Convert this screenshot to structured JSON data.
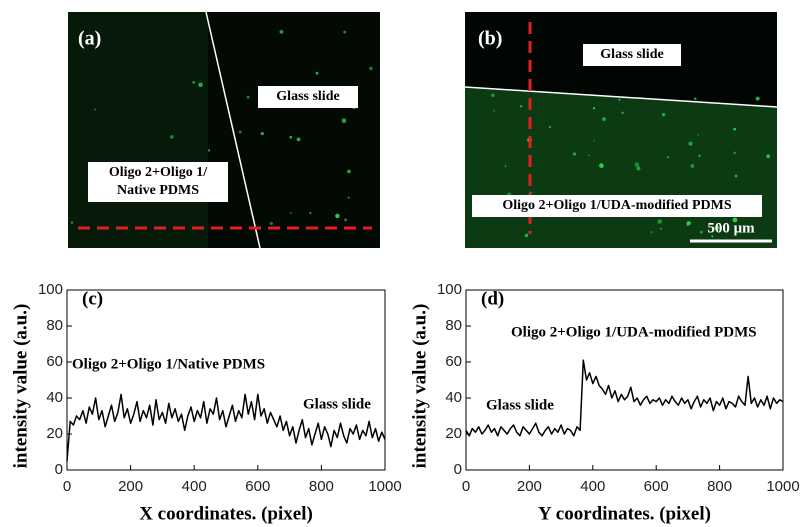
{
  "images": [
    {
      "label": "(a)",
      "annotations": [
        [
          "Glass slide"
        ],
        [
          "Oligo 2+Oligo 1/",
          "Native PDMS"
        ]
      ]
    },
    {
      "label": "(b)",
      "annotations": [
        [
          "Glass slide"
        ],
        [
          "Oligo 2+Oligo 1/UDA-modified  PDMS"
        ]
      ],
      "scale_bar": "500 μm"
    }
  ],
  "chart_data": [
    {
      "type": "line",
      "label": "(c)",
      "xlabel": "X coordinates. (pixel)",
      "ylabel": "intensity value (a.u.)",
      "annotations": [
        "Oligo 2+Oligo 1/Native PDMS",
        "Glass slide"
      ],
      "xlim": [
        0,
        1000
      ],
      "ylim": [
        0,
        100
      ],
      "xticks": [
        0,
        200,
        400,
        600,
        800,
        1000
      ],
      "yticks": [
        0,
        20,
        40,
        60,
        80,
        100
      ],
      "color": "#000000",
      "x": [
        0,
        10,
        20,
        30,
        40,
        50,
        60,
        70,
        80,
        90,
        100,
        110,
        120,
        130,
        140,
        150,
        160,
        170,
        180,
        190,
        200,
        210,
        220,
        230,
        240,
        250,
        260,
        270,
        280,
        290,
        300,
        310,
        320,
        330,
        340,
        350,
        360,
        370,
        380,
        390,
        400,
        410,
        420,
        430,
        440,
        450,
        460,
        470,
        480,
        490,
        500,
        510,
        520,
        530,
        540,
        550,
        560,
        570,
        580,
        590,
        600,
        610,
        620,
        630,
        640,
        650,
        660,
        670,
        680,
        690,
        700,
        710,
        720,
        730,
        740,
        750,
        760,
        770,
        780,
        790,
        800,
        810,
        820,
        830,
        840,
        850,
        860,
        870,
        880,
        890,
        900,
        910,
        920,
        930,
        940,
        950,
        960,
        970,
        980,
        990,
        1000
      ],
      "values": [
        5,
        27,
        25,
        30,
        28,
        33,
        26,
        35,
        31,
        40,
        28,
        33,
        24,
        30,
        36,
        27,
        32,
        42,
        29,
        34,
        26,
        31,
        38,
        27,
        33,
        29,
        36,
        25,
        39,
        28,
        32,
        26,
        37,
        29,
        34,
        27,
        31,
        22,
        30,
        35,
        27,
        33,
        29,
        38,
        26,
        34,
        31,
        40,
        28,
        33,
        24,
        30,
        36,
        27,
        33,
        29,
        42,
        31,
        38,
        28,
        42,
        30,
        34,
        26,
        32,
        28,
        24,
        30,
        22,
        27,
        19,
        24,
        15,
        22,
        28,
        18,
        23,
        14,
        20,
        26,
        17,
        24,
        20,
        13,
        22,
        18,
        26,
        19,
        15,
        23,
        20,
        25,
        17,
        22,
        19,
        27,
        18,
        23,
        16,
        21,
        17
      ]
    },
    {
      "type": "line",
      "label": "(d)",
      "xlabel": "Y coordinates. (pixel)",
      "ylabel": "intensity value (a.u.)",
      "annotations": [
        "Oligo 2+Oligo 1/UDA-modified PDMS",
        "Glass slide"
      ],
      "xlim": [
        0,
        1000
      ],
      "ylim": [
        0,
        100
      ],
      "xticks": [
        0,
        200,
        400,
        600,
        800,
        1000
      ],
      "yticks": [
        0,
        20,
        40,
        60,
        80,
        100
      ],
      "color": "#000000",
      "x": [
        0,
        10,
        20,
        30,
        40,
        50,
        60,
        70,
        80,
        90,
        100,
        110,
        120,
        130,
        140,
        150,
        160,
        170,
        180,
        190,
        200,
        210,
        220,
        230,
        240,
        250,
        260,
        270,
        280,
        290,
        300,
        310,
        320,
        330,
        340,
        350,
        360,
        370,
        380,
        390,
        400,
        410,
        420,
        430,
        440,
        450,
        460,
        470,
        480,
        490,
        500,
        510,
        520,
        530,
        540,
        550,
        560,
        570,
        580,
        590,
        600,
        610,
        620,
        630,
        640,
        650,
        660,
        670,
        680,
        690,
        700,
        710,
        720,
        730,
        740,
        750,
        760,
        770,
        780,
        790,
        800,
        810,
        820,
        830,
        840,
        850,
        860,
        870,
        880,
        890,
        900,
        910,
        920,
        930,
        940,
        950,
        960,
        970,
        980,
        990,
        1000
      ],
      "values": [
        22,
        19,
        23,
        21,
        24,
        20,
        22,
        25,
        21,
        23,
        19,
        24,
        22,
        20,
        23,
        25,
        21,
        19,
        24,
        22,
        20,
        23,
        26,
        21,
        19,
        22,
        24,
        20,
        23,
        21,
        25,
        20,
        23,
        22,
        19,
        24,
        22,
        61,
        50,
        54,
        48,
        52,
        47,
        45,
        42,
        47,
        40,
        44,
        38,
        42,
        39,
        41,
        46,
        38,
        40,
        36,
        39,
        41,
        37,
        39,
        38,
        40,
        36,
        39,
        37,
        41,
        38,
        36,
        40,
        37,
        39,
        34,
        38,
        41,
        35,
        39,
        37,
        40,
        33,
        38,
        36,
        40,
        34,
        38,
        37,
        35,
        41,
        38,
        36,
        52,
        37,
        40,
        35,
        39,
        36,
        41,
        34,
        40,
        37,
        39,
        38
      ]
    }
  ]
}
